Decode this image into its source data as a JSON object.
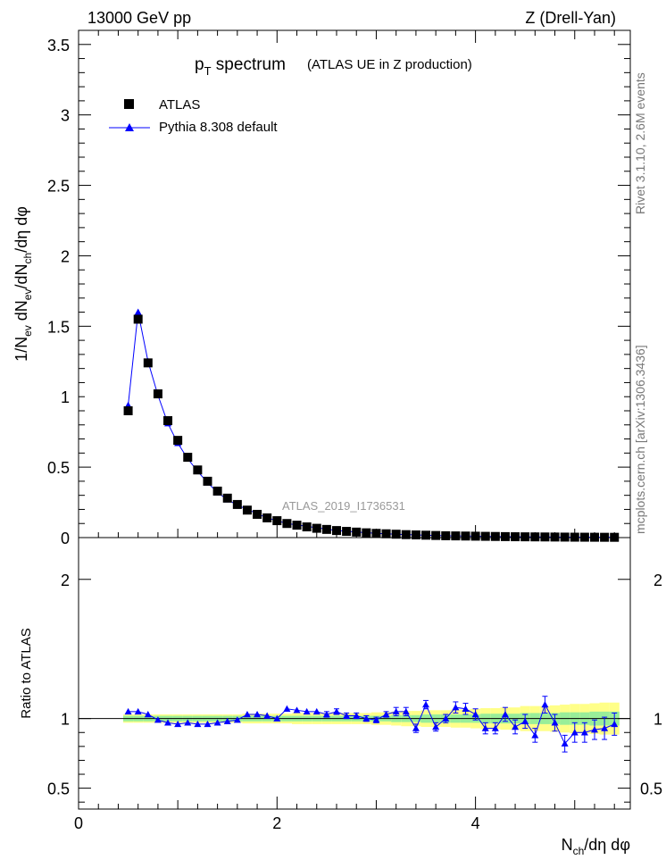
{
  "header": {
    "left": "13000 GeV pp",
    "right": "Z (Drell-Yan)"
  },
  "side": {
    "rivet": "Rivet 3.1.10,  2.6M events",
    "mcplots": "mcplots.cern.ch [arXiv:1306.3436]"
  },
  "title": {
    "main_p": "p",
    "main_sub": "T",
    "main_rest": " spectrum",
    "paren": "(ATLAS UE in Z production)"
  },
  "legend": {
    "data": "ATLAS",
    "mc": "Pythia 8.308 default"
  },
  "analysis_tag": "ATLAS_2019_I1736531",
  "labels": {
    "ylabel_top": "1/N_ev dN_ev/dN_ch/dη dφ",
    "ylabel_bottom": "Ratio to ATLAS",
    "xlabel": "N_ch/dη dφ"
  },
  "colors": {
    "data": "#000000",
    "mc": "#0000ff",
    "band_inner": "#99ee99",
    "band_outer": "#ffff88"
  },
  "chart_data": {
    "type": "scatter",
    "x": [
      0.5,
      0.6,
      0.7,
      0.8,
      0.9,
      1.0,
      1.1,
      1.2,
      1.3,
      1.4,
      1.5,
      1.6,
      1.7,
      1.8,
      1.9,
      2.0,
      2.1,
      2.2,
      2.3,
      2.4,
      2.5,
      2.6,
      2.7,
      2.8,
      2.9,
      3.0,
      3.1,
      3.2,
      3.3,
      3.4,
      3.5,
      3.6,
      3.7,
      3.8,
      3.9,
      4.0,
      4.1,
      4.2,
      4.3,
      4.4,
      4.5,
      4.6,
      4.7,
      4.8,
      4.9,
      5.0,
      5.1,
      5.2,
      5.3,
      5.4
    ],
    "series": [
      {
        "name": "ATLAS",
        "values": [
          0.9,
          1.55,
          1.24,
          1.02,
          0.83,
          0.69,
          0.57,
          0.48,
          0.4,
          0.33,
          0.28,
          0.235,
          0.195,
          0.165,
          0.14,
          0.12,
          0.1,
          0.088,
          0.076,
          0.066,
          0.058,
          0.05,
          0.044,
          0.039,
          0.034,
          0.03,
          0.027,
          0.024,
          0.021,
          0.019,
          0.017,
          0.015,
          0.013,
          0.012,
          0.011,
          0.01,
          0.009,
          0.008,
          0.007,
          0.006,
          0.0055,
          0.005,
          0.0045,
          0.004,
          0.0035,
          0.003,
          0.0028,
          0.0025,
          0.0022,
          0.002
        ]
      },
      {
        "name": "Pythia 8.308 default",
        "values": [
          0.94,
          1.6,
          1.25,
          1.01,
          0.81,
          0.67,
          0.56,
          0.47,
          0.39,
          0.32,
          0.27,
          0.23,
          0.2,
          0.17,
          0.14,
          0.12,
          0.1,
          0.09,
          0.08,
          0.07,
          0.06,
          0.05,
          0.045,
          0.04,
          0.035,
          0.03,
          0.027,
          0.024,
          0.021,
          0.019,
          0.017,
          0.015,
          0.013,
          0.012,
          0.011,
          0.01,
          0.009,
          0.008,
          0.007,
          0.006,
          0.0055,
          0.005,
          0.0045,
          0.004,
          0.0035,
          0.003,
          0.0028,
          0.0025,
          0.0022,
          0.002
        ]
      }
    ],
    "ratio": {
      "values": [
        1.05,
        1.05,
        1.03,
        0.99,
        0.97,
        0.96,
        0.97,
        0.96,
        0.96,
        0.97,
        0.98,
        0.99,
        1.03,
        1.03,
        1.02,
        1.0,
        1.07,
        1.06,
        1.05,
        1.05,
        1.03,
        1.05,
        1.02,
        1.02,
        1.0,
        0.99,
        1.03,
        1.05,
        1.05,
        0.93,
        1.1,
        0.94,
        1.0,
        1.08,
        1.07,
        1.03,
        0.93,
        0.93,
        1.03,
        0.94,
        0.98,
        0.88,
        1.1,
        0.97,
        0.82,
        0.9,
        0.9,
        0.92,
        0.93,
        0.96
      ],
      "errors": [
        0.01,
        0.01,
        0.01,
        0.01,
        0.01,
        0.01,
        0.01,
        0.01,
        0.01,
        0.01,
        0.01,
        0.01,
        0.01,
        0.01,
        0.01,
        0.01,
        0.01,
        0.01,
        0.01,
        0.01,
        0.02,
        0.02,
        0.02,
        0.02,
        0.02,
        0.02,
        0.02,
        0.03,
        0.03,
        0.03,
        0.03,
        0.03,
        0.03,
        0.04,
        0.04,
        0.04,
        0.04,
        0.04,
        0.05,
        0.05,
        0.05,
        0.05,
        0.06,
        0.06,
        0.06,
        0.07,
        0.07,
        0.07,
        0.08,
        0.08
      ],
      "band_inner": [
        0.02,
        0.02,
        0.02,
        0.02,
        0.02,
        0.02,
        0.02,
        0.02,
        0.02,
        0.02,
        0.02,
        0.02,
        0.02,
        0.02,
        0.02,
        0.02,
        0.02,
        0.02,
        0.02,
        0.02,
        0.02,
        0.02,
        0.02,
        0.02,
        0.02,
        0.02,
        0.02,
        0.025,
        0.025,
        0.025,
        0.03,
        0.03,
        0.03,
        0.03,
        0.03,
        0.03,
        0.035,
        0.035,
        0.035,
        0.035,
        0.04,
        0.04,
        0.04,
        0.04,
        0.045,
        0.045,
        0.045,
        0.05,
        0.05,
        0.05
      ],
      "band_outer": [
        0.01,
        0.01,
        0.01,
        0.01,
        0.01,
        0.01,
        0.01,
        0.01,
        0.01,
        0.01,
        0.01,
        0.01,
        0.015,
        0.015,
        0.015,
        0.015,
        0.015,
        0.02,
        0.02,
        0.02,
        0.02,
        0.02,
        0.02,
        0.02,
        0.02,
        0.025,
        0.025,
        0.025,
        0.03,
        0.03,
        0.03,
        0.03,
        0.03,
        0.035,
        0.035,
        0.04,
        0.04,
        0.04,
        0.045,
        0.045,
        0.05,
        0.05,
        0.05,
        0.055,
        0.055,
        0.06,
        0.06,
        0.06,
        0.065,
        0.065
      ]
    },
    "xlim": [
      0,
      5.56
    ],
    "ylim_top": [
      0,
      3.6
    ],
    "ylim_ratio": [
      0.35,
      2.3
    ],
    "xticks": [
      0,
      2,
      4
    ],
    "yticks_top": [
      0.5,
      1,
      1.5,
      2,
      2.5,
      3,
      3.5
    ],
    "yticks_ratio": [
      0.5,
      1,
      2
    ],
    "log_y": false,
    "grid": false,
    "legend_position": "top-left"
  }
}
